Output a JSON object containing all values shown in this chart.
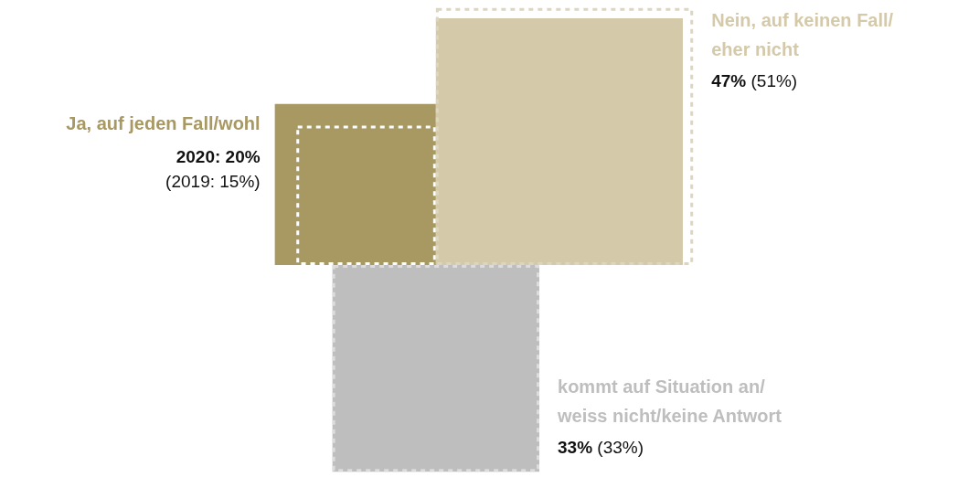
{
  "chart_data": {
    "type": "other",
    "categories": [
      "Ja, auf jeden Fall/wohl",
      "Nein, auf keinen Fall/eher nicht",
      "kommt auf Situation an/weiss nicht/keine Antwort"
    ],
    "series": [
      {
        "values": [
          20,
          47,
          33
        ],
        "colors": [
          "#a89862",
          "#d4c9a9",
          "#bebebe"
        ],
        "value_labels": [
          "2020: 20%",
          "47%",
          "33%"
        ]
      },
      {
        "values": [
          15,
          51,
          33
        ],
        "colors": [
          "#ffffff",
          "#ddd6bf",
          "#dcdcdc"
        ],
        "line_style": "dashed",
        "value_labels": [
          "(2019: 15%)",
          "(51%)",
          "(33%)"
        ]
      }
    ]
  }
}
